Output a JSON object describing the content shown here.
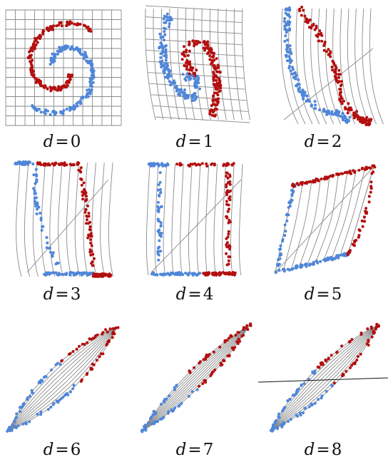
{
  "figure": {
    "colors": {
      "class_a": "#4f86d9",
      "class_b": "#b40f0f",
      "grid": "#8a8a8a",
      "guide_line": "#111111"
    },
    "panels": [
      {
        "var": "d",
        "eq": "=",
        "num": "0"
      },
      {
        "var": "d",
        "eq": "=",
        "num": "1"
      },
      {
        "var": "d",
        "eq": "=",
        "num": "2"
      },
      {
        "var": "d",
        "eq": "=",
        "num": "3"
      },
      {
        "var": "d",
        "eq": "=",
        "num": "4"
      },
      {
        "var": "d",
        "eq": "=",
        "num": "5"
      },
      {
        "var": "d",
        "eq": "=",
        "num": "6"
      },
      {
        "var": "d",
        "eq": "=",
        "num": "7"
      },
      {
        "var": "d",
        "eq": "=",
        "num": "8"
      }
    ]
  }
}
